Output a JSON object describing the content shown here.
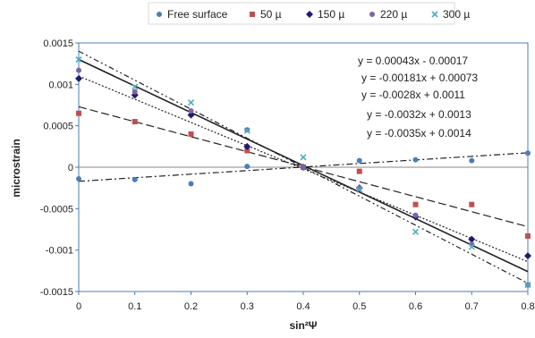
{
  "chart_data": {
    "type": "scatter",
    "xlabel": "sin²Ψ",
    "ylabel": "microstrain",
    "xlim": [
      0,
      0.8
    ],
    "ylim": [
      -0.0015,
      0.0015
    ],
    "x_ticks": [
      "0",
      "0.1",
      "0.2",
      "0.3",
      "0.4",
      "0.5",
      "0.6",
      "0.7",
      "0.8"
    ],
    "y_ticks": [
      "0.0015",
      "0.001",
      "0.0005",
      "0",
      "-0.0005",
      "-0.001",
      "-0.0015"
    ],
    "legend_position": "top",
    "grid": false,
    "series": [
      {
        "name": "Free surface",
        "color": "#4a7ebb",
        "marker": "circle",
        "x": [
          0,
          0.1,
          0.2,
          0.3,
          0.4,
          0.5,
          0.6,
          0.7,
          0.8
        ],
        "y": [
          -0.00014,
          -0.00015,
          -0.0002,
          1e-05,
          0.0,
          8e-05,
          9e-05,
          8e-05,
          0.00017
        ],
        "trendline": {
          "slope": 0.00043,
          "intercept": -0.00017,
          "style": "dash-dot"
        }
      },
      {
        "name": "50 µ",
        "color": "#c0504d",
        "marker": "square",
        "x": [
          0,
          0.1,
          0.2,
          0.3,
          0.4,
          0.5,
          0.6,
          0.7,
          0.8
        ],
        "y": [
          0.00065,
          0.00055,
          0.0004,
          0.0002,
          0.0,
          -5e-05,
          -0.00045,
          -0.00045,
          -0.00083
        ],
        "trendline": {
          "slope": -0.00181,
          "intercept": 0.00073,
          "style": "dashed"
        }
      },
      {
        "name": "150 µ",
        "color": "#1f1a70",
        "marker": "diamond",
        "x": [
          0,
          0.1,
          0.2,
          0.3,
          0.4,
          0.5,
          0.6,
          0.7,
          0.8
        ],
        "y": [
          0.00107,
          0.00087,
          0.00063,
          0.00025,
          0.0,
          -0.00025,
          -0.0006,
          -0.00087,
          -0.00107
        ],
        "trendline": {
          "slope": -0.0028,
          "intercept": 0.0011,
          "style": "dotted"
        }
      },
      {
        "name": "220 µ",
        "color": "#8064a2",
        "marker": "circle",
        "x": [
          0,
          0.1,
          0.2,
          0.3,
          0.4,
          0.5,
          0.6,
          0.7,
          0.8
        ],
        "y": [
          0.00117,
          0.00091,
          0.00068,
          0.00045,
          0.0,
          -0.00025,
          -0.00058,
          -0.00093,
          -0.00142
        ],
        "trendline": {
          "slope": -0.0032,
          "intercept": 0.0013,
          "style": "solid"
        }
      },
      {
        "name": "300 µ",
        "color": "#4bacc6",
        "marker": "x",
        "x": [
          0,
          0.1,
          0.2,
          0.3,
          0.4,
          0.5,
          0.6,
          0.7,
          0.8
        ],
        "y": [
          0.0013,
          0.00097,
          0.00078,
          0.00044,
          0.00012,
          -0.00027,
          -0.00078,
          -0.00096,
          -0.00142
        ],
        "trendline": {
          "slope": -0.0035,
          "intercept": 0.0014,
          "style": "dash-dot-dot"
        }
      }
    ],
    "equations": [
      "y = 0.00043x - 0.00017",
      "y = -0.00181x + 0.00073",
      "y = -0.0028x + 0.0011",
      "y = -0.0032x + 0.0013",
      "y = -0.0035x + 0.0014"
    ],
    "colors": {
      "plot_border": "#4a7ebb",
      "zero_line": "#888888",
      "trendline": "#222222"
    }
  }
}
